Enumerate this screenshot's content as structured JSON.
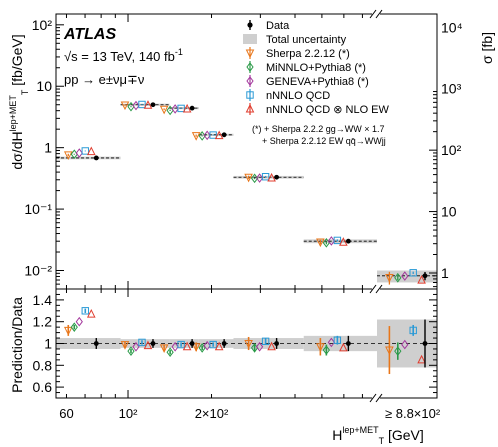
{
  "chart_data": {
    "type": "scatter",
    "experiment": "ATLAS",
    "energy_label": "√s = 13 TeV, 140 fb",
    "energy_sup": "-1",
    "process_label": "pp → e±νμ∓ν",
    "main_ylabel": "dσ/dH",
    "main_ylabel_sub": "T",
    "main_ylabel_sup": "lep+MET",
    "main_ylabel_unit": " [fb/GeV]",
    "right_ylabel": "σ [fb]",
    "ratio_ylabel": "Prediction/Data",
    "xlabel": "H",
    "xlabel_sub": "T",
    "xlabel_sup": "lep+MET",
    "xlabel_unit": " [GeV]",
    "x_tick_labels": [
      "60",
      "10²",
      "2×10²",
      "≥ 8.8×10²"
    ],
    "main_ytick_labels": [
      "10⁻²",
      "10⁻¹",
      "1",
      "10",
      "10²"
    ],
    "right_ytick_labels": [
      "1",
      "10",
      "10²",
      "10³",
      "10⁴"
    ],
    "ratio_ytick_labels": [
      "0.6",
      "0.8",
      "1",
      "1.2",
      "1.4"
    ],
    "main_ylim": [
      0.005,
      150
    ],
    "ratio_ylim": [
      0.5,
      1.5
    ],
    "overflow_xsec_fb": 0.9,
    "bins": [
      {
        "lo": 55,
        "hi": 94,
        "data": 0.68,
        "unc_rel": 0.05
      },
      {
        "lo": 94,
        "hi": 141,
        "data": 5.0,
        "unc_rel": 0.04
      },
      {
        "lo": 141,
        "hi": 180,
        "data": 4.4,
        "unc_rel": 0.04
      },
      {
        "lo": 180,
        "hi": 240,
        "data": 1.62,
        "unc_rel": 0.04
      },
      {
        "lo": 240,
        "hi": 430,
        "data": 0.33,
        "unc_rel": 0.05
      },
      {
        "lo": 430,
        "hi": 790,
        "data": 0.03,
        "unc_rel": 0.07
      },
      {
        "lo": 790,
        "hi": 1300,
        "data": 0.0082,
        "unc_rel": 0.22,
        "overflow": true
      }
    ],
    "legend": {
      "data": "Data",
      "total_unc": "Total uncertainty",
      "footnote1": "(*) + Sherpa 2.2.2 gg→WW × 1.7",
      "footnote2": "+ Sherpa 2.2.12 EW qq̄→WWjj"
    },
    "series": [
      {
        "name": "Sherpa 2.2.12 (*)",
        "color": "#e8761a",
        "marker": "tri-down",
        "ratios": [
          1.12,
          0.99,
          0.96,
          0.97,
          1.0,
          0.97,
          0.94
        ],
        "errs": [
          0.05,
          0.03,
          0.03,
          0.04,
          0.06,
          0.08,
          0.22
        ]
      },
      {
        "name": "MiNNLO+Pythia8 (*)",
        "color": "#2a9a48",
        "marker": "diamond",
        "ratios": [
          1.15,
          0.93,
          0.92,
          0.96,
          0.96,
          0.94,
          0.93
        ],
        "errs": [
          0.02,
          0.02,
          0.02,
          0.02,
          0.03,
          0.05,
          0.08
        ]
      },
      {
        "name": "GENEVA+Pythia8 (*)",
        "color": "#a4399d",
        "marker": "diamond",
        "ratios": [
          1.2,
          0.97,
          0.97,
          0.98,
          0.97,
          1.01,
          0.99
        ],
        "errs": [
          0,
          0,
          0,
          0,
          0,
          0,
          0
        ]
      },
      {
        "name": "nNNLO QCD",
        "color": "#2a9ad6",
        "marker": "square",
        "ratios": [
          1.3,
          1.01,
          0.99,
          0.99,
          1.02,
          1.03,
          1.12
        ],
        "errs": [
          0.02,
          0.02,
          0.02,
          0.02,
          0.03,
          0.04,
          0.05
        ]
      },
      {
        "name": "nNNLO QCD ⊗ NLO EW",
        "color": "#e03c2e",
        "marker": "tri-up",
        "ratios": [
          1.27,
          0.98,
          0.97,
          0.97,
          0.97,
          0.96,
          0.85
        ],
        "errs": [
          0,
          0,
          0,
          0,
          0,
          0,
          0
        ]
      }
    ]
  }
}
